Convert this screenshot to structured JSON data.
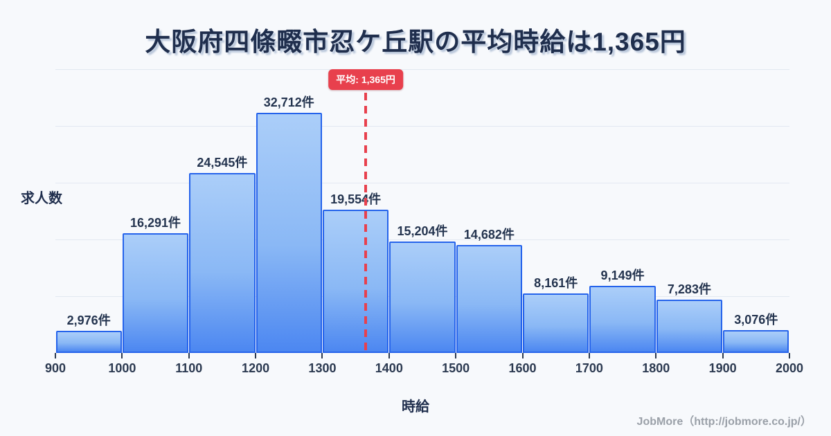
{
  "title": "大阪府四條畷市忍ケ丘駅の平均時給は1,365円",
  "chart_data": {
    "type": "bar",
    "title": "大阪府四條畷市忍ケ丘駅の平均時給は1,365円",
    "xlabel": "時給",
    "ylabel": "求人数",
    "x_range": [
      900,
      2000
    ],
    "x_ticks": [
      "900",
      "1000",
      "1100",
      "1200",
      "1300",
      "1400",
      "1500",
      "1600",
      "1700",
      "1800",
      "1900",
      "2000"
    ],
    "categories": [
      "900-1000",
      "1000-1100",
      "1100-1200",
      "1200-1300",
      "1300-1400",
      "1400-1500",
      "1500-1600",
      "1600-1700",
      "1700-1800",
      "1800-1900",
      "1900-2000"
    ],
    "values": [
      2976,
      16291,
      24545,
      32712,
      19554,
      15204,
      14682,
      8161,
      9149,
      7283,
      3076
    ],
    "bar_labels": [
      "2,976件",
      "16,291件",
      "24,545件",
      "32,712件",
      "19,554件",
      "15,204件",
      "14,682件",
      "8,161件",
      "9,149件",
      "7,283件",
      "3,076件"
    ],
    "ylim": [
      0,
      38700
    ],
    "grid": "horizontal",
    "gridline_divisions": 5,
    "legend": "none",
    "average_line": {
      "value": 1365,
      "label": "平均: 1,365円"
    }
  },
  "footer": {
    "credit": "JobMore（http://jobmore.co.jp/）"
  },
  "colors": {
    "background": "#f7f9fc",
    "title_text": "#1f2e4d",
    "label_text": "#24344f",
    "tick_text": "#2b3950",
    "grid_line": "#e2e8f1",
    "bar_border": "#2563eb",
    "bar_gradient_top": "#abcef9",
    "bar_gradient_bottom": "#4c87f1",
    "average_red": "#e8404d",
    "footer_text": "#9aa0a8"
  }
}
